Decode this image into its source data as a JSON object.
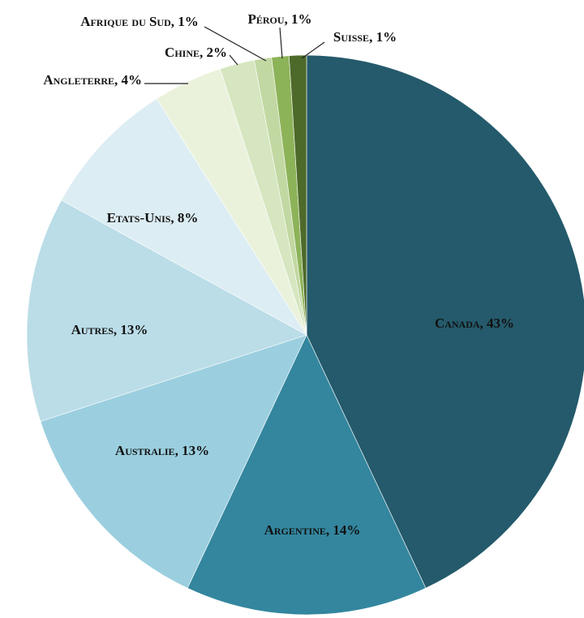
{
  "chart_data": {
    "type": "pie",
    "categories": [
      "Canada",
      "Argentine",
      "Australie",
      "Autres",
      "Etats-Unis",
      "Angleterre",
      "Chine",
      "Afrique du Sud",
      "Pérou",
      "Suisse"
    ],
    "values": [
      43,
      14,
      13,
      13,
      8,
      4,
      2,
      1,
      1,
      1
    ],
    "value_labels": [
      "43%",
      "14%",
      "13%",
      "13%",
      "8%",
      "4%",
      "2%",
      "1%",
      "1%",
      "1%"
    ],
    "label_separator": ", ",
    "colors": [
      "#245a6b",
      "#33869e",
      "#9bcfdf",
      "#bbdde8",
      "#dcedf3",
      "#eaf2dc",
      "#d6e6c0",
      "#c2d8a2",
      "#8db359",
      "#4e6a2a"
    ]
  }
}
